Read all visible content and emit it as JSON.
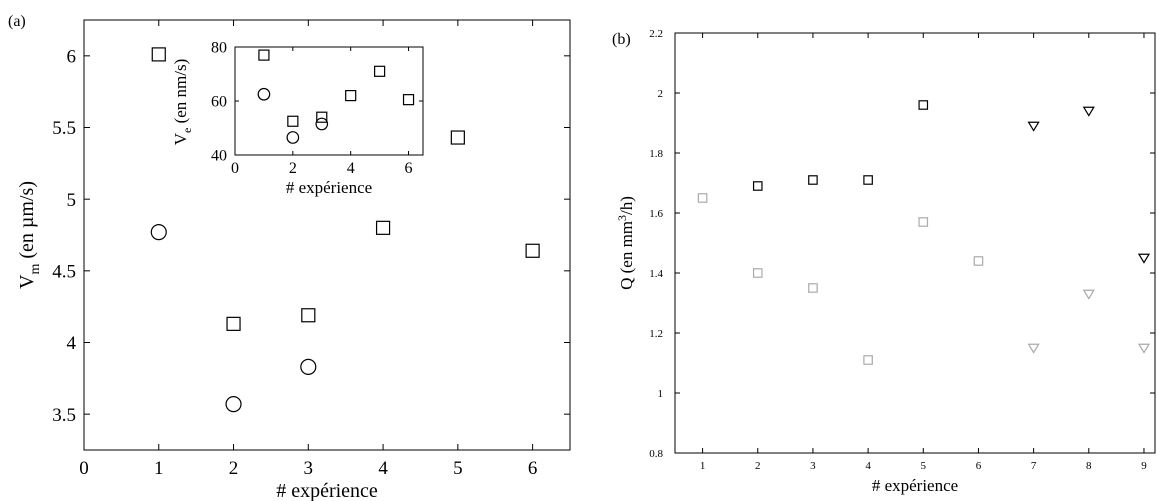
{
  "chart_data": [
    {
      "panel_label": "(a)",
      "type": "scatter",
      "xlabel": "# expérience",
      "ylabel_main": "V",
      "ylabel_sub": "m",
      "ylabel_rest": " (en µm/s)",
      "xlim": [
        0,
        6.5
      ],
      "ylim": [
        3.25,
        6.25
      ],
      "xticks": [
        0,
        1,
        2,
        3,
        4,
        5,
        6
      ],
      "yticks": [
        3.5,
        4,
        4.5,
        5,
        5.5,
        6
      ],
      "series": [
        {
          "marker": "square",
          "color": "#000000",
          "points": [
            [
              1,
              6.01
            ],
            [
              2,
              4.13
            ],
            [
              3,
              4.19
            ],
            [
              4,
              4.8
            ],
            [
              5,
              5.43
            ],
            [
              6,
              4.64
            ]
          ]
        },
        {
          "marker": "circle",
          "color": "#000000",
          "points": [
            [
              1,
              4.77
            ],
            [
              2,
              3.57
            ],
            [
              3,
              3.83
            ]
          ]
        }
      ],
      "inset": {
        "type": "scatter",
        "xlabel": "# expérience",
        "ylabel_main": "V",
        "ylabel_sub": "e",
        "ylabel_rest": " (en nm/s)",
        "xlim": [
          0,
          6.5
        ],
        "ylim": [
          40,
          80
        ],
        "xticks": [
          0,
          2,
          4,
          6
        ],
        "yticks": [
          40,
          60,
          80
        ],
        "series": [
          {
            "marker": "square",
            "color": "#000000",
            "points": [
              [
                1,
                77
              ],
              [
                2,
                52.5
              ],
              [
                3,
                54
              ],
              [
                4,
                62
              ],
              [
                5,
                71
              ],
              [
                6,
                60.5
              ]
            ]
          },
          {
            "marker": "circle",
            "color": "#000000",
            "points": [
              [
                1,
                62.5
              ],
              [
                2,
                46.5
              ],
              [
                3,
                51.5
              ]
            ]
          }
        ]
      }
    },
    {
      "panel_label": "(b)",
      "type": "scatter",
      "xlabel": "# expérience",
      "ylabel_main": "Q (en mm",
      "ylabel_sup": "3",
      "ylabel_rest": "/h)",
      "xlim": [
        0.5,
        9.2
      ],
      "ylim": [
        0.8,
        2.2
      ],
      "xticks": [
        1,
        2,
        3,
        4,
        5,
        6,
        7,
        8,
        9
      ],
      "yticks": [
        0.8,
        1,
        1.2,
        1.4,
        1.6,
        1.8,
        2,
        2.2
      ],
      "series": [
        {
          "marker": "square",
          "color": "#000000",
          "points": [
            [
              2,
              1.69
            ],
            [
              3,
              1.71
            ],
            [
              4,
              1.71
            ],
            [
              5,
              1.96
            ]
          ]
        },
        {
          "marker": "triangle-down",
          "color": "#000000",
          "points": [
            [
              7,
              1.89
            ],
            [
              8,
              1.94
            ],
            [
              9,
              1.45
            ]
          ]
        },
        {
          "marker": "square",
          "color": "#aaaaaa",
          "points": [
            [
              1,
              1.65
            ],
            [
              2,
              1.4
            ],
            [
              3,
              1.35
            ],
            [
              4,
              1.11
            ],
            [
              5,
              1.57
            ],
            [
              6,
              1.44
            ]
          ]
        },
        {
          "marker": "triangle-down",
          "color": "#aaaaaa",
          "points": [
            [
              7,
              1.15
            ],
            [
              8,
              1.33
            ],
            [
              9,
              1.15
            ]
          ]
        }
      ]
    }
  ]
}
